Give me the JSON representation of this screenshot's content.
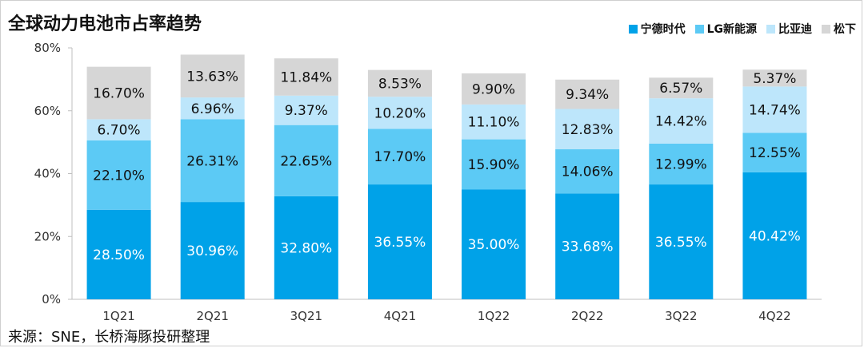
{
  "chart_data": {
    "type": "bar",
    "stacked": true,
    "title": "全球动力电池市占率趋势",
    "categories": [
      "1Q21",
      "2Q21",
      "3Q21",
      "4Q21",
      "1Q22",
      "2Q22",
      "3Q22",
      "4Q22"
    ],
    "series": [
      {
        "name": "宁德时代",
        "color": "#00a2e8",
        "values": [
          28.5,
          30.96,
          32.8,
          36.55,
          35.0,
          33.68,
          36.55,
          40.42
        ],
        "labels": [
          "28.50%",
          "30.96%",
          "32.80%",
          "36.55%",
          "35.00%",
          "33.68%",
          "36.55%",
          "40.42%"
        ]
      },
      {
        "name": "LG新能源",
        "color": "#5ccaf5",
        "values": [
          22.1,
          26.31,
          22.65,
          17.7,
          15.9,
          14.06,
          12.99,
          12.55
        ],
        "labels": [
          "22.10%",
          "26.31%",
          "22.65%",
          "17.70%",
          "15.90%",
          "14.06%",
          "12.99%",
          "12.55%"
        ]
      },
      {
        "name": "比亚迪",
        "color": "#bde6fb",
        "values": [
          6.7,
          6.96,
          9.37,
          10.2,
          11.1,
          12.83,
          14.42,
          14.74
        ],
        "labels": [
          "6.70%",
          "6.96%",
          "9.37%",
          "10.20%",
          "11.10%",
          "12.83%",
          "14.42%",
          "14.74%"
        ]
      },
      {
        "name": "松下",
        "color": "#d6d6d6",
        "values": [
          16.7,
          13.63,
          11.84,
          8.53,
          9.9,
          9.34,
          6.57,
          5.37
        ],
        "labels": [
          "16.70%",
          "13.63%",
          "11.84%",
          "8.53%",
          "9.90%",
          "9.34%",
          "6.57%",
          "5.37%"
        ]
      }
    ],
    "ylim": [
      0,
      80
    ],
    "yticks": [
      "0%",
      "20%",
      "40%",
      "60%",
      "80%"
    ],
    "legend_position": "top-right",
    "grid": false
  },
  "source": "来源：SNE，长桥海豚投研整理"
}
